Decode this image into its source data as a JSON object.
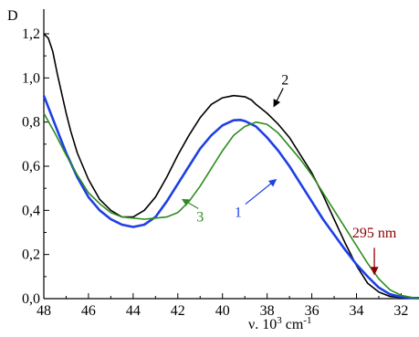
{
  "chart_data": {
    "type": "line",
    "ylabel": "D",
    "xlabel_main": "ν. 10",
    "xlabel_sup1": "3",
    "xlabel_unit": " cm",
    "xlabel_sup2": "-1",
    "xlim": [
      48,
      31.2
    ],
    "ylim": [
      0,
      1.3
    ],
    "grid": false,
    "x_ticks": [
      48,
      46,
      44,
      42,
      40,
      38,
      36,
      34,
      32
    ],
    "x_tick_labels": [
      "48",
      "46",
      "44",
      "42",
      "40",
      "38",
      "36",
      "34",
      "32"
    ],
    "y_ticks": [
      0,
      0.2,
      0.4,
      0.6,
      0.8,
      1.0,
      1.2
    ],
    "y_tick_labels": [
      "0,0",
      "0,2",
      "0,4",
      "0,6",
      "0,8",
      "1,0",
      "1,2"
    ],
    "series": [
      {
        "name": "2",
        "color": "#000000",
        "label_at": [
          37.2,
          0.97
        ],
        "arrow_to": [
          37.7,
          0.87
        ],
        "x": [
          48.0,
          47.8,
          47.6,
          47.4,
          47.2,
          47.0,
          46.8,
          46.5,
          46.0,
          45.5,
          45.0,
          44.5,
          44.0,
          43.5,
          43.0,
          42.5,
          42.0,
          41.5,
          41.0,
          40.5,
          40.0,
          39.5,
          39.0,
          38.7,
          38.5,
          38.0,
          37.5,
          37.0,
          36.5,
          36.0,
          35.5,
          35.0,
          34.5,
          34.0,
          33.5,
          33.0,
          32.5,
          32.0,
          31.5,
          31.2
        ],
        "y": [
          1.2,
          1.18,
          1.12,
          1.02,
          0.93,
          0.84,
          0.76,
          0.66,
          0.54,
          0.45,
          0.4,
          0.37,
          0.37,
          0.4,
          0.46,
          0.55,
          0.65,
          0.74,
          0.82,
          0.88,
          0.91,
          0.92,
          0.915,
          0.9,
          0.88,
          0.84,
          0.79,
          0.73,
          0.65,
          0.57,
          0.47,
          0.36,
          0.25,
          0.15,
          0.07,
          0.03,
          0.01,
          0.005,
          0.005,
          0.005
        ]
      },
      {
        "name": "1",
        "color": "#1e3fe6",
        "label_at": [
          39.3,
          0.37
        ],
        "arrow_to": [
          37.6,
          0.54
        ],
        "x": [
          48.0,
          47.5,
          47.0,
          46.5,
          46.0,
          45.5,
          45.0,
          44.5,
          44.0,
          43.5,
          43.0,
          42.5,
          42.0,
          41.5,
          41.0,
          40.5,
          40.0,
          39.5,
          39.2,
          39.0,
          38.5,
          38.0,
          37.5,
          37.0,
          36.5,
          36.0,
          35.5,
          35.0,
          34.5,
          34.0,
          33.5,
          33.0,
          32.5,
          32.0,
          31.5,
          31.2
        ],
        "y": [
          0.92,
          0.79,
          0.66,
          0.55,
          0.46,
          0.4,
          0.36,
          0.335,
          0.325,
          0.335,
          0.37,
          0.44,
          0.52,
          0.6,
          0.68,
          0.74,
          0.785,
          0.808,
          0.81,
          0.805,
          0.78,
          0.73,
          0.67,
          0.6,
          0.52,
          0.44,
          0.36,
          0.29,
          0.22,
          0.155,
          0.1,
          0.05,
          0.02,
          0.008,
          0.003,
          0.002
        ]
      },
      {
        "name": "3",
        "color": "#2e8b1f",
        "label_at": [
          41.0,
          0.35
        ],
        "arrow_to": [
          41.8,
          0.45
        ],
        "x": [
          48.0,
          47.5,
          47.0,
          46.5,
          46.0,
          45.5,
          45.0,
          44.5,
          44.0,
          43.5,
          43.0,
          42.5,
          42.0,
          41.5,
          41.0,
          40.5,
          40.0,
          39.5,
          39.0,
          38.5,
          38.0,
          37.5,
          37.0,
          36.5,
          36.0,
          35.5,
          35.0,
          34.5,
          34.0,
          33.5,
          33.0,
          32.5,
          32.0,
          31.5,
          31.2
        ],
        "y": [
          0.84,
          0.75,
          0.65,
          0.56,
          0.48,
          0.43,
          0.39,
          0.37,
          0.365,
          0.36,
          0.365,
          0.37,
          0.39,
          0.44,
          0.51,
          0.59,
          0.67,
          0.74,
          0.78,
          0.8,
          0.79,
          0.75,
          0.69,
          0.63,
          0.56,
          0.48,
          0.4,
          0.32,
          0.24,
          0.16,
          0.09,
          0.04,
          0.015,
          0.005,
          0.003
        ]
      }
    ],
    "annotations": [
      {
        "text": "295 nm",
        "color": "#8b0000",
        "text_at": [
          33.2,
          0.27
        ],
        "arrow_from": [
          33.2,
          0.23
        ],
        "arrow_to": [
          33.2,
          0.11
        ]
      }
    ]
  }
}
